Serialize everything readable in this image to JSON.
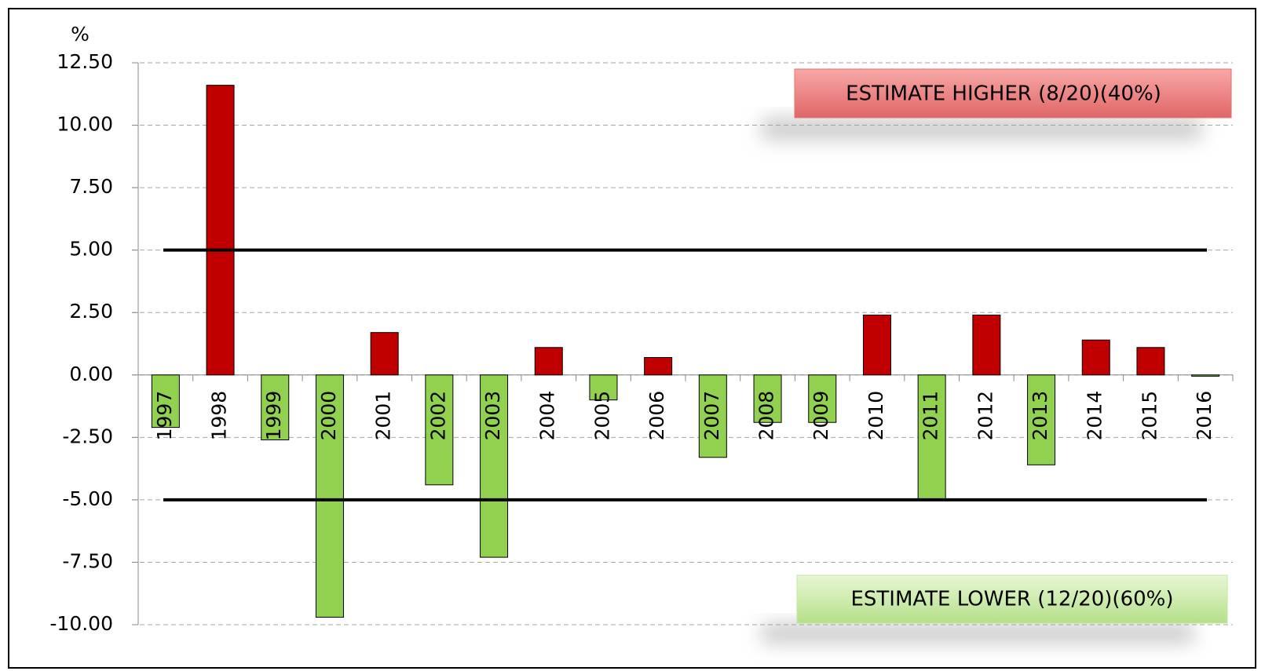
{
  "chart_data": {
    "type": "bar",
    "y_label": "%",
    "categories": [
      "1997",
      "1998",
      "1999",
      "2000",
      "2001",
      "2002",
      "2003",
      "2004",
      "2005",
      "2006",
      "2007",
      "2008",
      "2009",
      "2010",
      "2011",
      "2012",
      "2013",
      "2014",
      "2015",
      "2016"
    ],
    "values": [
      -2.1,
      11.6,
      -2.6,
      -9.7,
      1.7,
      -4.4,
      -7.3,
      1.1,
      -1.0,
      0.7,
      -3.3,
      -1.9,
      -1.9,
      2.4,
      -5.0,
      2.4,
      -3.6,
      1.4,
      1.1,
      -0.05
    ],
    "positive_color": "#c00000",
    "negative_color": "#92d050",
    "ylim": [
      -10,
      12.5
    ],
    "yticks": [
      {
        "value": -10,
        "label": "-10.00"
      },
      {
        "value": -7.5,
        "label": "-7.50"
      },
      {
        "value": -5,
        "label": "-5.00"
      },
      {
        "value": -2.5,
        "label": "-2.50"
      },
      {
        "value": 0,
        "label": "0.00"
      },
      {
        "value": 2.5,
        "label": "2.50"
      },
      {
        "value": 5,
        "label": "5.00"
      },
      {
        "value": 7.5,
        "label": "7.50"
      },
      {
        "value": 10,
        "label": "10.00"
      },
      {
        "value": 12.5,
        "label": "12.50"
      }
    ],
    "grid": true,
    "reference_lines": [
      5,
      -5
    ],
    "annotations": [
      "ESTIMATE HIGHER (8/20)(40%)",
      "ESTIMATE LOWER (12/20)(60%)"
    ]
  }
}
